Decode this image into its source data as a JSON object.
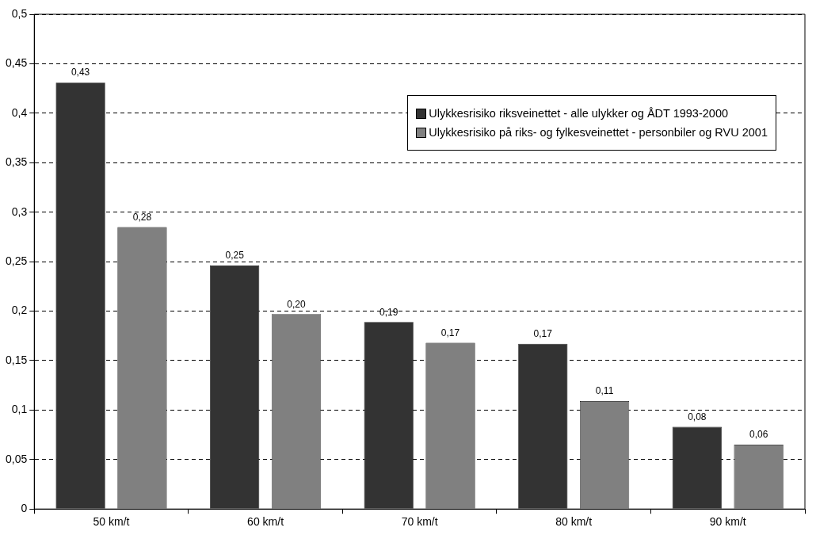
{
  "chart_data": {
    "type": "bar",
    "categories": [
      "50 km/t",
      "60 km/t",
      "70 km/t",
      "80 km/t",
      "90 km/t"
    ],
    "series": [
      {
        "name": "Ulykkesrisiko riksveinettet - alle ulykker og ÅDT 1993-2000",
        "color": "#333333",
        "values": [
          0.431,
          0.246,
          0.189,
          0.167,
          0.083
        ],
        "value_labels": [
          "0,43",
          "0,25",
          "0,19",
          "0,17",
          "0,08"
        ]
      },
      {
        "name": "Ulykkesrisiko på riks- og fylkesveinettet - personbiler og RVU 2001",
        "color": "#808080",
        "values": [
          0.285,
          0.197,
          0.168,
          0.109,
          0.065
        ],
        "value_labels": [
          "0,28",
          "0,20",
          "0,17",
          "0,11",
          "0,06"
        ]
      }
    ],
    "ylim": [
      0,
      0.5
    ],
    "yticks": [
      {
        "value": 0,
        "label": "0"
      },
      {
        "value": 0.05,
        "label": "0,05"
      },
      {
        "value": 0.1,
        "label": "0,1"
      },
      {
        "value": 0.15,
        "label": "0,15"
      },
      {
        "value": 0.2,
        "label": "0,2"
      },
      {
        "value": 0.25,
        "label": "0,25"
      },
      {
        "value": 0.3,
        "label": "0,3"
      },
      {
        "value": 0.35,
        "label": "0,35"
      },
      {
        "value": 0.4,
        "label": "0,4"
      },
      {
        "value": 0.45,
        "label": "0,45"
      },
      {
        "value": 0.5,
        "label": "0,5"
      }
    ],
    "grid": "y",
    "legend": "top right"
  }
}
